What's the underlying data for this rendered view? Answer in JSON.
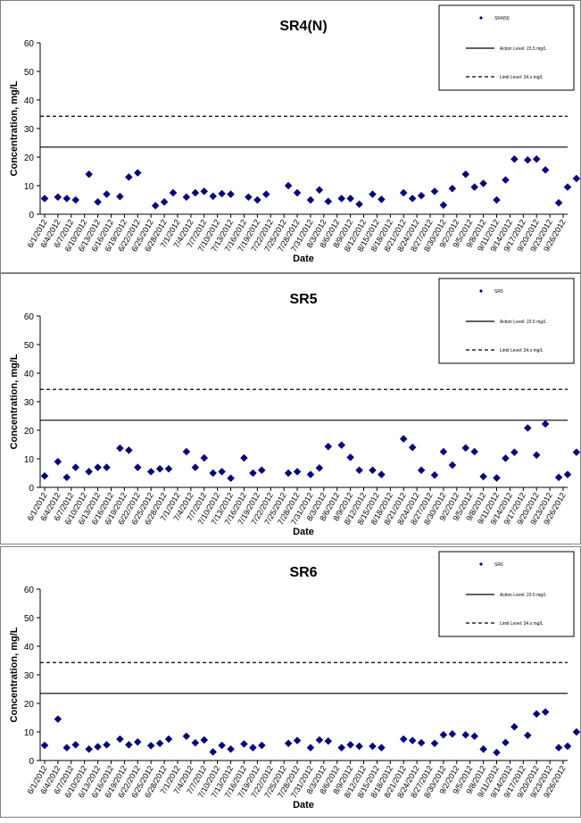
{
  "charts": {
    "ylabel": "Concentration, mg/L",
    "xlabel": "Date",
    "x_tick_labels": [
      "6/1/2012",
      "6/4/2012",
      "6/7/2012",
      "6/10/2012",
      "6/13/2012",
      "6/16/2012",
      "6/19/2012",
      "6/22/2012",
      "6/25/2012",
      "6/28/2012",
      "7/1/2012",
      "7/4/2012",
      "7/7/2012",
      "7/10/2012",
      "7/13/2012",
      "7/16/2012",
      "7/19/2012",
      "7/22/2012",
      "7/25/2012",
      "7/28/2012",
      "7/31/2012",
      "8/3/2012",
      "8/6/2012",
      "8/9/2012",
      "8/12/2012",
      "8/15/2012",
      "8/18/2012",
      "8/21/2012",
      "8/24/2012",
      "8/27/2012",
      "8/30/2012",
      "9/2/2012",
      "9/5/2012",
      "9/8/2012",
      "9/11/2012",
      "9/14/2012",
      "9/17/2012",
      "9/20/2012",
      "9/23/2012",
      "9/26/2012"
    ],
    "y_ticks": [
      "0",
      "10",
      "20",
      "30",
      "40",
      "50",
      "60"
    ],
    "legend_action": "Action Level: 23.5 mg/L",
    "legend_limit": "Limit Level: 34.x mg/L"
  },
  "chart_data": [
    {
      "type": "scatter",
      "title": "SR4(N)",
      "legend_series": "SR4(N)",
      "xlabel": "Date",
      "ylabel": "Concentration, mg/L",
      "ylim": [
        0,
        60
      ],
      "x": [
        "6/1/2012",
        "6/4/2012",
        "6/6/2012",
        "6/8/2012",
        "6/11/2012",
        "6/13/2012",
        "6/15/2012",
        "6/18/2012",
        "6/20/2012",
        "6/22/2012",
        "6/26/2012",
        "6/28/2012",
        "6/30/2012",
        "7/3/2012",
        "7/5/2012",
        "7/7/2012",
        "7/9/2012",
        "7/11/2012",
        "7/13/2012",
        "7/17/2012",
        "7/19/2012",
        "7/21/2012",
        "7/26/2012",
        "7/28/2012",
        "7/31/2012",
        "8/2/2012",
        "8/4/2012",
        "8/7/2012",
        "8/9/2012",
        "8/11/2012",
        "8/14/2012",
        "8/16/2012",
        "8/21/2012",
        "8/23/2012",
        "8/25/2012",
        "8/28/2012",
        "8/30/2012",
        "9/1/2012",
        "9/4/2012",
        "9/6/2012",
        "9/8/2012",
        "9/11/2012",
        "9/13/2012",
        "9/15/2012",
        "9/18/2012",
        "9/20/2012",
        "9/22/2012",
        "9/25/2012",
        "9/27/2012",
        "9/29/2012"
      ],
      "values": [
        5.5,
        6.0,
        5.5,
        5.0,
        14.0,
        4.3,
        7.0,
        6.2,
        13.0,
        14.5,
        3.0,
        4.3,
        7.5,
        6.0,
        7.5,
        8.0,
        6.3,
        7.2,
        7.0,
        6.0,
        5.0,
        7.0,
        10.0,
        7.5,
        5.0,
        8.5,
        4.5,
        5.5,
        5.5,
        3.5,
        7.0,
        5.2,
        7.5,
        5.5,
        6.5,
        8.0,
        3.2,
        9.0,
        14.0,
        9.5,
        10.8,
        5.0,
        12.0,
        19.3,
        19.0,
        19.3,
        15.5,
        4.0,
        9.5,
        12.5
      ],
      "reference_lines": [
        {
          "name": "Action Level",
          "y": 23.5,
          "style": "solid"
        },
        {
          "name": "Limit Level",
          "y": 34.3,
          "style": "dashed"
        }
      ],
      "grid": false,
      "legend_position": "top-right"
    },
    {
      "type": "scatter",
      "title": "SR5",
      "legend_series": "SR5",
      "xlabel": "Date",
      "ylabel": "Concentration, mg/L",
      "ylim": [
        0,
        60
      ],
      "x": [
        "6/1/2012",
        "6/4/2012",
        "6/6/2012",
        "6/8/2012",
        "6/11/2012",
        "6/13/2012",
        "6/15/2012",
        "6/18/2012",
        "6/20/2012",
        "6/22/2012",
        "6/25/2012",
        "6/27/2012",
        "6/29/2012",
        "7/3/2012",
        "7/5/2012",
        "7/7/2012",
        "7/9/2012",
        "7/11/2012",
        "7/13/2012",
        "7/16/2012",
        "7/18/2012",
        "7/20/2012",
        "7/26/2012",
        "7/28/2012",
        "7/31/2012",
        "8/2/2012",
        "8/4/2012",
        "8/7/2012",
        "8/9/2012",
        "8/11/2012",
        "8/14/2012",
        "8/16/2012",
        "8/21/2012",
        "8/23/2012",
        "8/25/2012",
        "8/28/2012",
        "8/30/2012",
        "9/1/2012",
        "9/4/2012",
        "9/6/2012",
        "9/8/2012",
        "9/11/2012",
        "9/13/2012",
        "9/15/2012",
        "9/18/2012",
        "9/20/2012",
        "9/22/2012",
        "9/25/2012",
        "9/27/2012",
        "9/29/2012"
      ],
      "values": [
        4.0,
        9.0,
        3.5,
        7.0,
        5.5,
        7.0,
        7.0,
        13.7,
        13.0,
        7.0,
        5.5,
        6.5,
        6.5,
        12.5,
        7.0,
        10.3,
        5.0,
        5.5,
        3.2,
        10.3,
        5.0,
        6.0,
        5.0,
        5.5,
        4.5,
        6.8,
        14.3,
        14.8,
        10.5,
        6.0,
        6.0,
        4.5,
        17.0,
        14.0,
        6.0,
        4.3,
        12.5,
        7.8,
        13.8,
        12.5,
        3.8,
        3.3,
        10.2,
        12.3,
        20.8,
        11.3,
        22.2,
        3.5,
        4.5,
        12.3
      ],
      "reference_lines": [
        {
          "name": "Action Level",
          "y": 23.5,
          "style": "solid"
        },
        {
          "name": "Limit Level",
          "y": 34.3,
          "style": "dashed"
        }
      ],
      "grid": false,
      "legend_position": "top-right"
    },
    {
      "type": "scatter",
      "title": "SR6",
      "legend_series": "SR6",
      "xlabel": "Date",
      "ylabel": "Concentration, mg/L",
      "ylim": [
        0,
        60
      ],
      "x": [
        "6/1/2012",
        "6/4/2012",
        "6/6/2012",
        "6/8/2012",
        "6/11/2012",
        "6/13/2012",
        "6/15/2012",
        "6/18/2012",
        "6/20/2012",
        "6/22/2012",
        "6/25/2012",
        "6/27/2012",
        "6/29/2012",
        "7/3/2012",
        "7/5/2012",
        "7/7/2012",
        "7/9/2012",
        "7/11/2012",
        "7/13/2012",
        "7/16/2012",
        "7/18/2012",
        "7/20/2012",
        "7/26/2012",
        "7/28/2012",
        "7/31/2012",
        "8/2/2012",
        "8/4/2012",
        "8/7/2012",
        "8/9/2012",
        "8/11/2012",
        "8/14/2012",
        "8/16/2012",
        "8/21/2012",
        "8/23/2012",
        "8/25/2012",
        "8/28/2012",
        "8/30/2012",
        "9/1/2012",
        "9/4/2012",
        "9/6/2012",
        "9/8/2012",
        "9/11/2012",
        "9/13/2012",
        "9/15/2012",
        "9/18/2012",
        "9/20/2012",
        "9/22/2012",
        "9/25/2012",
        "9/27/2012",
        "9/29/2012"
      ],
      "values": [
        5.3,
        14.5,
        4.5,
        5.5,
        4.0,
        4.8,
        5.5,
        7.5,
        5.5,
        6.5,
        5.2,
        6.0,
        7.5,
        8.5,
        6.2,
        7.2,
        3.0,
        5.3,
        4.0,
        5.8,
        4.5,
        5.3,
        6.0,
        7.0,
        4.5,
        7.2,
        6.8,
        4.5,
        5.5,
        5.0,
        5.0,
        4.5,
        7.5,
        7.0,
        6.2,
        6.0,
        9.0,
        9.3,
        9.0,
        8.5,
        4.0,
        2.8,
        6.3,
        11.8,
        8.8,
        16.3,
        17.0,
        4.5,
        5.0,
        10.0
      ],
      "reference_lines": [
        {
          "name": "Action Level",
          "y": 23.5,
          "style": "solid"
        },
        {
          "name": "Limit Level",
          "y": 34.3,
          "style": "dashed"
        }
      ],
      "grid": false,
      "legend_position": "top-right"
    }
  ]
}
